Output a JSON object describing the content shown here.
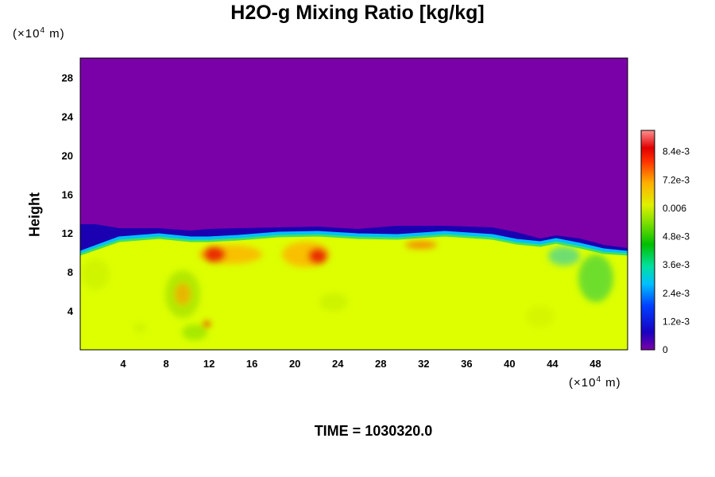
{
  "chart_data": {
    "type": "heatmap",
    "title": "H2O-g Mixing Ratio [kg/kg]",
    "xlabel": "",
    "ylabel": "Height",
    "x_unit": "(×10⁴ m)",
    "y_unit": "(×10⁴ m)",
    "x_ticks": [
      "4",
      "8",
      "12",
      "16",
      "20",
      "24",
      "28",
      "32",
      "36",
      "40",
      "44",
      "48"
    ],
    "y_ticks": [
      "4",
      "8",
      "12",
      "16",
      "20",
      "24",
      "28"
    ],
    "xlim": [
      0,
      51
    ],
    "ylim": [
      0,
      30
    ],
    "colorbar": {
      "ticks": [
        "0",
        "1.2e-3",
        "2.4e-3",
        "3.6e-3",
        "4.8e-3",
        "0.006",
        "7.2e-3",
        "8.4e-3"
      ],
      "range": [
        0,
        0.0093
      ]
    },
    "field_summary": {
      "upper_layer_value": 0,
      "lower_layer_value": 0.0062,
      "interface_height_approx": [
        10,
        12
      ]
    },
    "time_label": "TIME = 1030320.0"
  }
}
